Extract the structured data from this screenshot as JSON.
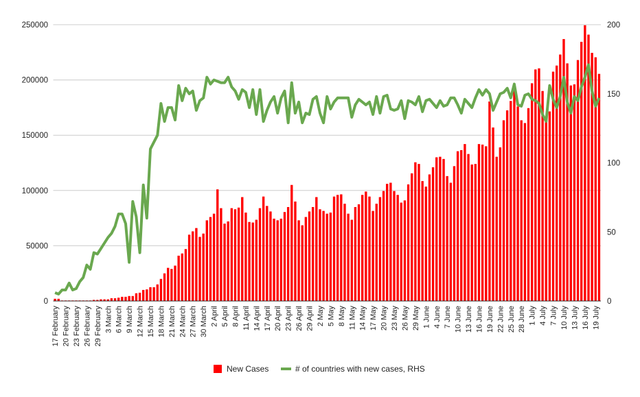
{
  "chart_data": {
    "type": "bar+line",
    "title": "",
    "xlabel": "",
    "ylabel": "",
    "y2label": "",
    "ylim": [
      0,
      250000
    ],
    "y2lim": [
      0,
      200
    ],
    "yticks": [
      "0",
      "50000",
      "100000",
      "150000",
      "200000",
      "250000"
    ],
    "y2ticks": [
      "0",
      "50",
      "100",
      "150",
      "200"
    ],
    "grid": true,
    "legend_position": "bottom",
    "colors": {
      "bars": "#ff0000",
      "line": "#6aa84f",
      "grid": "#cccccc"
    },
    "xticks": [
      "17 February",
      "20 February",
      "23 February",
      "26 February",
      "29 February",
      "3 March",
      "6 March",
      "9 March",
      "12 March",
      "15 March",
      "18 March",
      "21 March",
      "24 March",
      "27 March",
      "30 March",
      "2 April",
      "5 April",
      "8 April",
      "11 April",
      "14 April",
      "17 April",
      "20 April",
      "23 April",
      "26 April",
      "29 April",
      "2 May",
      "5 May",
      "8 May",
      "11 May",
      "14 May",
      "17 May",
      "20 May",
      "23 May",
      "26 May",
      "29 May",
      "1 June",
      "4 June",
      "7 June",
      "10 June",
      "13 June",
      "16 June",
      "19 June",
      "22 June",
      "25 June",
      "28 June",
      "1 July",
      "4 July",
      "7 July",
      "10 July",
      "13 July",
      "16 July",
      "19 July"
    ],
    "x_start": "17 February",
    "x_end": "20 July",
    "series": [
      {
        "name": "New Cases",
        "type": "bar",
        "axis": "left",
        "values": [
          2000,
          2000,
          500,
          500,
          500,
          500,
          500,
          500,
          500,
          500,
          500,
          1000,
          1000,
          1500,
          1500,
          1500,
          2500,
          2500,
          3000,
          3800,
          3800,
          4500,
          4500,
          7000,
          7500,
          10000,
          10500,
          12500,
          12500,
          15000,
          20000,
          25000,
          30000,
          29000,
          32000,
          41000,
          43000,
          47000,
          60000,
          63000,
          66000,
          58000,
          61000,
          73000,
          76000,
          79000,
          101000,
          84000,
          70000,
          72000,
          84000,
          83000,
          84500,
          94000,
          80000,
          71500,
          71000,
          73500,
          84000,
          94500,
          86000,
          81000,
          74500,
          73000,
          74500,
          80500,
          85000,
          105000,
          90000,
          73000,
          68500,
          76000,
          81000,
          85000,
          94000,
          83000,
          81500,
          79000,
          80000,
          94500,
          96000,
          96500,
          88000,
          79000,
          73500,
          85000,
          87500,
          96000,
          99000,
          94500,
          81500,
          88000,
          94000,
          99500,
          106000,
          107000,
          99500,
          96000,
          89000,
          91000,
          105500,
          115500,
          125500,
          124000,
          108500,
          103500,
          114500,
          121000,
          130000,
          130500,
          128500,
          113000,
          107000,
          122000,
          135500,
          136500,
          142000,
          133000,
          123500,
          124000,
          142000,
          141500,
          140000,
          180500,
          157000,
          130500,
          139000,
          163500,
          172500,
          181000,
          196000,
          176000,
          163500,
          161000,
          174500,
          197000,
          209500,
          210500,
          190000,
          163500,
          171500,
          207500,
          213000,
          223000,
          237000,
          215000,
          195000,
          196000,
          218000,
          234500,
          249500,
          241000,
          224500,
          220500,
          205500
        ]
      },
      {
        "name": "# of countries with new cases, RHS",
        "type": "line",
        "axis": "right",
        "values": [
          6,
          5,
          8,
          8,
          13,
          8,
          9,
          14,
          17,
          26,
          23,
          35,
          34,
          38,
          42,
          46,
          49,
          54,
          63,
          63,
          56,
          28,
          72,
          61,
          35,
          84,
          60,
          110,
          115,
          120,
          143,
          130,
          140,
          140,
          131,
          156,
          145,
          154,
          150,
          152,
          138,
          145,
          147,
          162,
          157,
          160,
          159,
          158,
          158,
          162,
          155,
          152,
          146,
          153,
          151,
          140,
          153,
          135,
          153,
          130,
          138,
          144,
          148,
          136,
          147,
          152,
          129,
          158,
          136,
          144,
          129,
          136,
          135,
          146,
          148,
          136,
          129,
          148,
          139,
          144,
          147,
          147,
          147,
          147,
          133,
          142,
          146,
          144,
          142,
          144,
          135,
          148,
          136,
          148,
          149,
          139,
          138,
          139,
          145,
          132,
          145,
          144,
          142,
          148,
          137,
          145,
          146,
          143,
          140,
          145,
          141,
          142,
          147,
          147,
          142,
          136,
          146,
          143,
          140,
          147,
          153,
          149,
          153,
          150,
          138,
          144,
          150,
          151,
          154,
          147,
          157,
          142,
          141,
          149,
          150,
          146,
          145,
          143,
          135,
          130,
          156,
          146,
          140,
          148,
          162,
          144,
          136,
          148,
          145,
          155,
          162,
          171,
          152,
          141,
          147
        ]
      }
    ]
  }
}
